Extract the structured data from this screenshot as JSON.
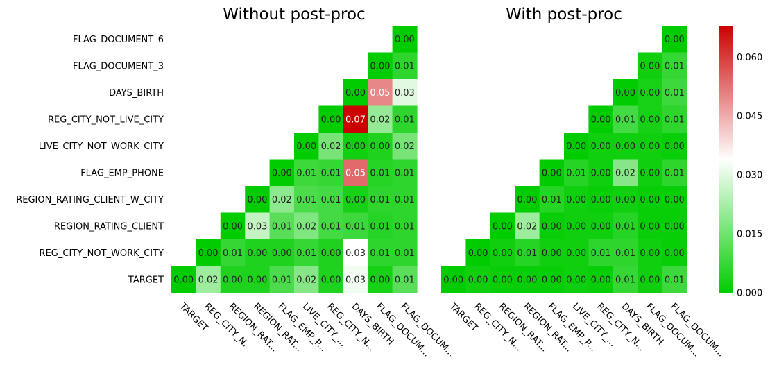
{
  "chart_data": [
    {
      "type": "heatmap",
      "title": "Without post-proc",
      "row_labels": [
        "FLAG_DOCUMENT_6",
        "FLAG_DOCUMENT_3",
        "DAYS_BIRTH",
        "REG_CITY_NOT_LIVE_CITY",
        "LIVE_CITY_NOT_WORK_CITY",
        "FLAG_EMP_PHONE",
        "REGION_RATING_CLIENT_W_CITY",
        "REGION_RATING_CLIENT",
        "REG_CITY_NOT_WORK_CITY",
        "TARGET"
      ],
      "col_labels": [
        "TARGET",
        "REG_CITY_N...",
        "REGION_RAT...",
        "REGION_RAT...",
        "FLAG_EMP_P...",
        "LIVE_CITY_...",
        "REG_CITY_N...",
        "DAYS_BIRTH",
        "FLAG_DOCUM...",
        "FLAG_DOCUM..."
      ],
      "matrix": [
        [
          null,
          null,
          null,
          null,
          null,
          null,
          null,
          null,
          null,
          0.0
        ],
        [
          null,
          null,
          null,
          null,
          null,
          null,
          null,
          null,
          0.0,
          0.01
        ],
        [
          null,
          null,
          null,
          null,
          null,
          null,
          null,
          0.0,
          0.05,
          0.03
        ],
        [
          null,
          null,
          null,
          null,
          null,
          null,
          0.0,
          0.07,
          0.02,
          0.01
        ],
        [
          null,
          null,
          null,
          null,
          null,
          0.0,
          0.02,
          0.0,
          0.0,
          0.02
        ],
        [
          null,
          null,
          null,
          null,
          0.0,
          0.01,
          0.01,
          0.05,
          0.01,
          0.01
        ],
        [
          null,
          null,
          null,
          0.0,
          0.02,
          0.01,
          0.01,
          0.0,
          0.01,
          0.01
        ],
        [
          null,
          null,
          0.0,
          0.03,
          0.01,
          0.02,
          0.01,
          0.01,
          0.01,
          0.01
        ],
        [
          null,
          0.0,
          0.01,
          0.0,
          0.0,
          0.01,
          0.0,
          0.03,
          0.01,
          0.01
        ],
        [
          0.0,
          0.02,
          0.0,
          0.0,
          0.01,
          0.02,
          0.0,
          0.03,
          0.0,
          0.01
        ]
      ],
      "shade": [
        [
          null,
          null,
          null,
          null,
          null,
          null,
          null,
          null,
          null,
          0.0
        ],
        [
          null,
          null,
          null,
          null,
          null,
          null,
          null,
          null,
          0.0,
          0.006
        ],
        [
          null,
          null,
          null,
          null,
          null,
          null,
          null,
          0.0,
          0.05,
          0.03
        ],
        [
          null,
          null,
          null,
          null,
          null,
          null,
          0.0,
          0.068,
          0.02,
          0.006
        ],
        [
          null,
          null,
          null,
          null,
          null,
          0.0,
          0.016,
          0.002,
          0.004,
          0.016
        ],
        [
          null,
          null,
          null,
          null,
          0.0,
          0.008,
          0.007,
          0.054,
          0.005,
          0.006
        ],
        [
          null,
          null,
          null,
          0.0,
          0.019,
          0.01,
          0.009,
          0.003,
          0.006,
          0.006
        ],
        [
          null,
          null,
          0.0,
          0.026,
          0.012,
          0.017,
          0.009,
          0.008,
          0.005,
          0.006
        ],
        [
          null,
          0.0,
          0.007,
          0.004,
          0.004,
          0.007,
          0.004,
          0.034,
          0.006,
          0.006
        ],
        [
          0.0,
          0.021,
          0.004,
          0.004,
          0.01,
          0.018,
          0.004,
          0.032,
          0.003,
          0.012
        ]
      ]
    },
    {
      "type": "heatmap",
      "title": "With post-proc",
      "row_labels": [
        "FLAG_DOCUMENT_6",
        "FLAG_DOCUMENT_3",
        "DAYS_BIRTH",
        "REG_CITY_NOT_LIVE_CITY",
        "LIVE_CITY_NOT_WORK_CITY",
        "FLAG_EMP_PHONE",
        "REGION_RATING_CLIENT_W_CITY",
        "REGION_RATING_CLIENT",
        "REG_CITY_NOT_WORK_CITY",
        "TARGET"
      ],
      "col_labels": [
        "TARGET",
        "REG_CITY_N...",
        "REGION_RAT...",
        "REGION_RAT...",
        "FLAG_EMP_P...",
        "LIVE_CITY_...",
        "REG_CITY_N...",
        "DAYS_BIRTH",
        "FLAG_DOCUM...",
        "FLAG_DOCUM..."
      ],
      "matrix": [
        [
          null,
          null,
          null,
          null,
          null,
          null,
          null,
          null,
          null,
          0.0
        ],
        [
          null,
          null,
          null,
          null,
          null,
          null,
          null,
          null,
          0.0,
          0.01
        ],
        [
          null,
          null,
          null,
          null,
          null,
          null,
          null,
          0.0,
          0.0,
          0.01
        ],
        [
          null,
          null,
          null,
          null,
          null,
          null,
          0.0,
          0.01,
          0.0,
          0.01
        ],
        [
          null,
          null,
          null,
          null,
          null,
          0.0,
          0.0,
          0.0,
          0.0,
          0.0
        ],
        [
          null,
          null,
          null,
          null,
          0.0,
          0.01,
          0.0,
          0.02,
          0.0,
          0.01
        ],
        [
          null,
          null,
          null,
          0.0,
          0.01,
          0.0,
          0.0,
          0.0,
          0.0,
          0.0
        ],
        [
          null,
          null,
          0.0,
          0.02,
          0.0,
          0.0,
          0.0,
          0.01,
          0.0,
          0.0
        ],
        [
          null,
          0.0,
          0.0,
          0.01,
          0.0,
          0.0,
          0.01,
          0.01,
          0.0,
          0.0
        ],
        [
          0.0,
          0.0,
          0.0,
          0.0,
          0.0,
          0.0,
          0.0,
          0.01,
          0.0,
          0.01
        ]
      ],
      "shade": [
        [
          null,
          null,
          null,
          null,
          null,
          null,
          null,
          null,
          null,
          0.0
        ],
        [
          null,
          null,
          null,
          null,
          null,
          null,
          null,
          null,
          0.002,
          0.007
        ],
        [
          null,
          null,
          null,
          null,
          null,
          null,
          null,
          0.0,
          0.003,
          0.008
        ],
        [
          null,
          null,
          null,
          null,
          null,
          null,
          0.0,
          0.009,
          0.003,
          0.006
        ],
        [
          null,
          null,
          null,
          null,
          null,
          0.0,
          0.002,
          0.002,
          0.002,
          0.001
        ],
        [
          null,
          null,
          null,
          null,
          0.0,
          0.005,
          0.002,
          0.018,
          0.002,
          0.006
        ],
        [
          null,
          null,
          null,
          0.0,
          0.005,
          0.002,
          0.001,
          0.002,
          0.001,
          0.001
        ],
        [
          null,
          null,
          0.0,
          0.021,
          0.001,
          0.002,
          0.002,
          0.005,
          0.001,
          0.001
        ],
        [
          null,
          0.0,
          0.002,
          0.005,
          0.002,
          0.002,
          0.006,
          0.006,
          0.002,
          0.001
        ],
        [
          0.0,
          0.002,
          0.001,
          0.001,
          0.001,
          0.002,
          0.001,
          0.007,
          0.002,
          0.008
        ]
      ]
    }
  ],
  "colorbar": {
    "ticks": [
      "0.000",
      "0.015",
      "0.030",
      "0.045",
      "0.060"
    ],
    "tick_values": [
      0.0,
      0.015,
      0.03,
      0.045,
      0.06
    ],
    "vmin": 0.0,
    "vmax": 0.068,
    "colors": [
      "#00cc00",
      "#ffffff",
      "#cc0000"
    ]
  }
}
